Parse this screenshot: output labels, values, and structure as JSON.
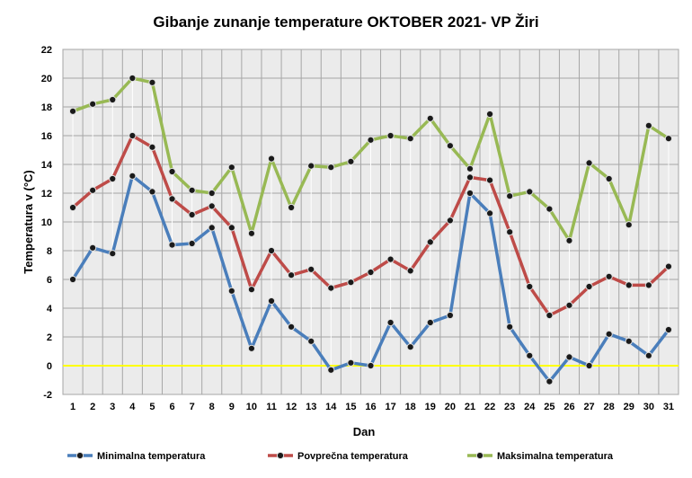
{
  "chart_data": {
    "type": "line",
    "title": "Gibanje zunanje temperature OKTOBER 2021- VP Žiri",
    "xlabel": "Dan",
    "ylabel": "Temperatura v (°C)",
    "ylim": [
      -2,
      22
    ],
    "yticks": [
      -2,
      0,
      2,
      4,
      6,
      8,
      10,
      12,
      14,
      16,
      18,
      20,
      22
    ],
    "grid": true,
    "legend_position": "bottom",
    "zero_line_color": "#ffff00",
    "categories": [
      "1",
      "2",
      "3",
      "4",
      "5",
      "6",
      "7",
      "8",
      "9",
      "10",
      "11",
      "12",
      "13",
      "14",
      "15",
      "16",
      "17",
      "18",
      "19",
      "20",
      "21",
      "22",
      "23",
      "24",
      "25",
      "26",
      "27",
      "28",
      "29",
      "30",
      "31"
    ],
    "series": [
      {
        "name": "Minimalna temperatura",
        "color": "#4a7ebb",
        "values": [
          6.0,
          8.2,
          7.8,
          13.2,
          12.1,
          8.4,
          8.5,
          9.6,
          5.2,
          1.2,
          4.5,
          2.7,
          1.7,
          -0.3,
          0.2,
          0.0,
          3.0,
          1.3,
          3.0,
          3.5,
          12.0,
          10.6,
          2.7,
          0.7,
          -1.1,
          0.6,
          0.0,
          2.2,
          1.7,
          0.7,
          2.5
        ]
      },
      {
        "name": "Povprečna temperatura",
        "color": "#be4b48",
        "values": [
          11.0,
          12.2,
          13.0,
          16.0,
          15.2,
          11.6,
          10.5,
          11.1,
          9.6,
          5.3,
          8.0,
          6.3,
          6.7,
          5.4,
          5.8,
          6.5,
          7.4,
          6.6,
          8.6,
          10.1,
          13.1,
          12.9,
          9.3,
          5.5,
          3.5,
          4.2,
          5.5,
          6.2,
          5.6,
          5.6,
          6.9
        ]
      },
      {
        "name": "Maksimalna temperatura",
        "color": "#98b954",
        "values": [
          17.7,
          18.2,
          18.5,
          20.0,
          19.7,
          13.5,
          12.2,
          12.0,
          13.8,
          9.2,
          14.4,
          11.0,
          13.9,
          13.8,
          14.2,
          15.7,
          16.0,
          15.8,
          17.2,
          15.3,
          13.7,
          17.5,
          11.8,
          12.1,
          10.9,
          8.7,
          14.1,
          13.0,
          9.8,
          16.7,
          15.8
        ]
      }
    ]
  }
}
